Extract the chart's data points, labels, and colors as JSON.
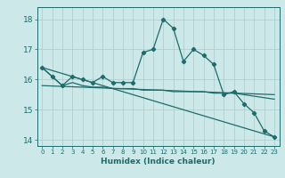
{
  "line1_x": [
    0,
    1,
    2,
    3,
    4,
    5,
    6,
    7,
    8,
    9,
    10,
    11,
    12,
    13,
    14,
    15,
    16,
    17,
    18,
    19,
    20,
    21,
    22,
    23
  ],
  "line1_y": [
    16.4,
    16.1,
    15.8,
    16.1,
    16.0,
    15.9,
    16.1,
    15.9,
    15.9,
    15.9,
    16.9,
    17.0,
    18.0,
    17.7,
    16.6,
    17.0,
    16.8,
    16.5,
    15.5,
    15.6,
    15.2,
    14.9,
    14.3,
    14.1
  ],
  "line2_x": [
    0,
    1,
    2,
    3,
    4,
    5,
    6,
    7,
    8,
    9,
    10,
    11,
    12,
    13,
    14,
    15,
    16,
    17,
    18,
    19,
    20,
    21,
    22,
    23
  ],
  "line2_y": [
    16.4,
    16.1,
    15.8,
    15.9,
    15.8,
    15.75,
    15.75,
    15.7,
    15.7,
    15.7,
    15.65,
    15.65,
    15.65,
    15.6,
    15.6,
    15.6,
    15.6,
    15.55,
    15.55,
    15.55,
    15.5,
    15.45,
    15.4,
    15.35
  ],
  "line3_x": [
    0,
    23
  ],
  "line3_y": [
    16.4,
    14.1
  ],
  "line4_x": [
    0,
    23
  ],
  "line4_y": [
    15.8,
    15.5
  ],
  "bg_color": "#cce8e8",
  "grid_color": "#aacccc",
  "line_color": "#1e6b6b",
  "xlabel": "Humidex (Indice chaleur)",
  "ylim": [
    13.8,
    18.4
  ],
  "xlim": [
    -0.5,
    23.5
  ],
  "yticks": [
    14,
    15,
    16,
    17,
    18
  ],
  "xticks": [
    0,
    1,
    2,
    3,
    4,
    5,
    6,
    7,
    8,
    9,
    10,
    11,
    12,
    13,
    14,
    15,
    16,
    17,
    18,
    19,
    20,
    21,
    22,
    23
  ]
}
